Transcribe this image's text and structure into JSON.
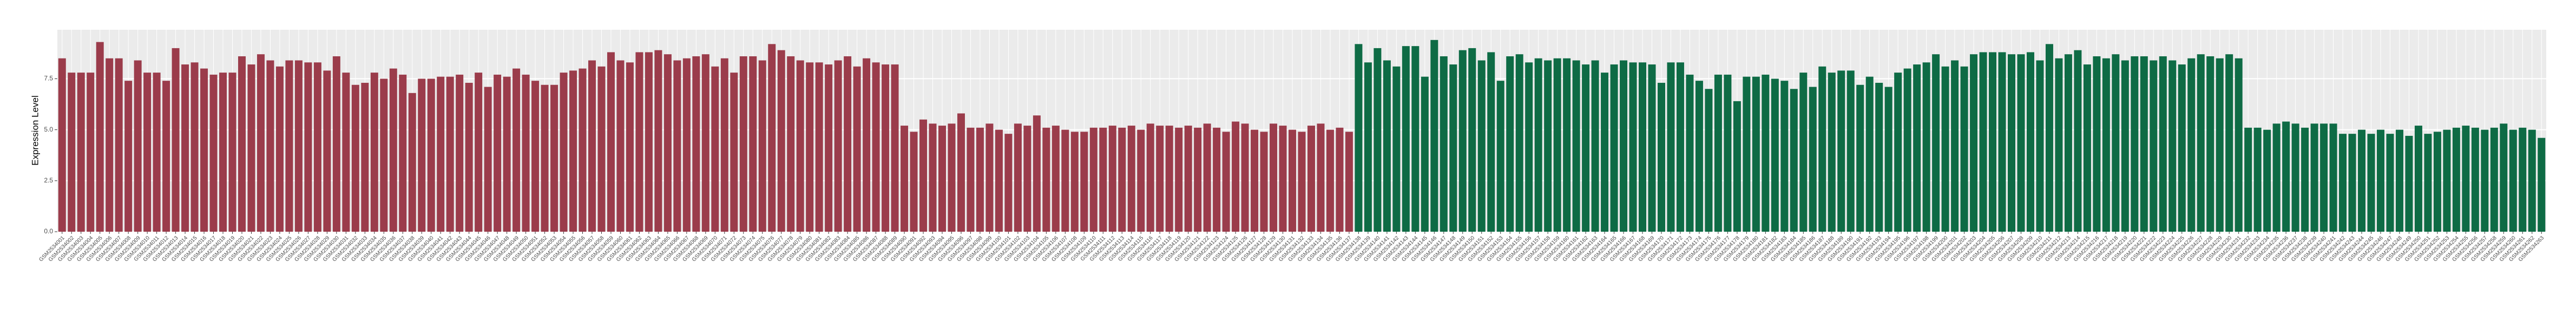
{
  "chart_data": {
    "type": "bar",
    "y_label": "Expression Level",
    "categories": [
      "GSM2534001",
      "GSM2534002",
      "GSM2534003",
      "GSM2534004",
      "GSM2534005",
      "GSM2534006",
      "GSM2534007",
      "GSM2534008",
      "GSM2534009",
      "GSM2534010",
      "GSM2534011",
      "GSM2534012",
      "GSM2534013",
      "GSM2534014",
      "GSM2534015",
      "GSM2534016",
      "GSM2534017",
      "GSM2534018",
      "GSM2534019",
      "GSM2534020",
      "GSM2534021",
      "GSM2534022",
      "GSM2534023",
      "GSM2534024",
      "GSM2534025",
      "GSM2534026",
      "GSM2534027",
      "GSM2534028",
      "GSM2534029",
      "GSM2534030",
      "GSM2534031",
      "GSM2534032",
      "GSM2534033",
      "GSM2534034",
      "GSM2534035",
      "GSM2534036",
      "GSM2534037",
      "GSM2534038",
      "GSM2534039",
      "GSM2534040",
      "GSM2534041",
      "GSM2534042",
      "GSM2534043",
      "GSM2534044",
      "GSM2534045",
      "GSM2534046",
      "GSM2534047",
      "GSM2534048",
      "GSM2534049",
      "GSM2534050",
      "GSM2534051",
      "GSM2534052",
      "GSM2534053",
      "GSM2534054",
      "GSM2534055",
      "GSM2534056",
      "GSM2534057",
      "GSM2534058",
      "GSM2534059",
      "GSM2534060",
      "GSM2534061",
      "GSM2534062",
      "GSM2534063",
      "GSM2534064",
      "GSM2534065",
      "GSM2534066",
      "GSM2534067",
      "GSM2534068",
      "GSM2534069",
      "GSM2534070",
      "GSM2534071",
      "GSM2534072",
      "GSM2534073",
      "GSM2534074",
      "GSM2534075",
      "GSM2534076",
      "GSM2534077",
      "GSM2534078",
      "GSM2534079",
      "GSM2534080",
      "GSM2534081",
      "GSM2534082",
      "GSM2534083",
      "GSM2534084",
      "GSM2534085",
      "GSM2534086",
      "GSM2534087",
      "GSM2534088",
      "GSM2534089",
      "GSM2534090",
      "GSM2534091",
      "GSM2534092",
      "GSM2534093",
      "GSM2534094",
      "GSM2534095",
      "GSM2534096",
      "GSM2534097",
      "GSM2534098",
      "GSM2534099",
      "GSM2534100",
      "GSM2534101",
      "GSM2534102",
      "GSM2534103",
      "GSM2534104",
      "GSM2534105",
      "GSM2534106",
      "GSM2534107",
      "GSM2534108",
      "GSM2534109",
      "GSM2534110",
      "GSM2534111",
      "GSM2534112",
      "GSM2534113",
      "GSM2534114",
      "GSM2534115",
      "GSM2534116",
      "GSM2534117",
      "GSM2534118",
      "GSM2534119",
      "GSM2534120",
      "GSM2534121",
      "GSM2534122",
      "GSM2534123",
      "GSM2534124",
      "GSM2534125",
      "GSM2534126",
      "GSM2534127",
      "GSM2534128",
      "GSM2534129",
      "GSM2534130",
      "GSM2534131",
      "GSM2534132",
      "GSM2534133",
      "GSM2534134",
      "GSM2534135",
      "GSM2534136",
      "GSM2534137",
      "GSM2534138",
      "GSM2534139",
      "GSM2534140",
      "GSM2534141",
      "GSM2534142",
      "GSM2534143",
      "GSM2534144",
      "GSM2534145",
      "GSM2534146",
      "GSM2534147",
      "GSM2534148",
      "GSM2534149",
      "GSM2534150",
      "GSM2534151",
      "GSM2534152",
      "GSM2534153",
      "GSM2534154",
      "GSM2534155",
      "GSM2534156",
      "GSM2534157",
      "GSM2534158",
      "GSM2534159",
      "GSM2534160",
      "GSM2534161",
      "GSM2534162",
      "GSM2534163",
      "GSM2534164",
      "GSM2534165",
      "GSM2534166",
      "GSM2534167",
      "GSM2534168",
      "GSM2534169",
      "GSM2534170",
      "GSM2534171",
      "GSM2534172",
      "GSM2534173",
      "GSM2534174",
      "GSM2534175",
      "GSM2534176",
      "GSM2534177",
      "GSM2534178",
      "GSM2534179",
      "GSM2534180",
      "GSM2534181",
      "GSM2534182",
      "GSM2534183",
      "GSM2534184",
      "GSM2534185",
      "GSM2534186",
      "GSM2534187",
      "GSM2534188",
      "GSM2534189",
      "GSM2534190",
      "GSM2534191",
      "GSM2534192",
      "GSM2534193",
      "GSM2534194",
      "GSM2534195",
      "GSM2534196",
      "GSM2534197",
      "GSM2534198",
      "GSM2534199",
      "GSM2534200",
      "GSM2534201",
      "GSM2534202",
      "GSM2534203",
      "GSM2534204",
      "GSM2534205",
      "GSM2534206",
      "GSM2534207",
      "GSM2534208",
      "GSM2534209",
      "GSM2534210",
      "GSM2534211",
      "GSM2534212",
      "GSM2534213",
      "GSM2534214",
      "GSM2534215",
      "GSM2534216",
      "GSM2534217",
      "GSM2534218",
      "GSM2534219",
      "GSM2534220",
      "GSM2534221",
      "GSM2534222",
      "GSM2534223",
      "GSM2534224",
      "GSM2534225",
      "GSM2534226",
      "GSM2534227",
      "GSM2534228",
      "GSM2534229",
      "GSM2534230",
      "GSM2534231",
      "GSM2534232",
      "GSM2534233",
      "GSM2534234",
      "GSM2534235",
      "GSM2534236",
      "GSM2534237",
      "GSM2534238",
      "GSM2534239",
      "GSM2534240",
      "GSM2534241",
      "GSM2534242",
      "GSM2534243",
      "GSM2534244",
      "GSM2534245",
      "GSM2534246",
      "GSM2534247",
      "GSM2534248",
      "GSM2534249",
      "GSM2534250",
      "GSM2534251",
      "GSM2534252",
      "GSM2534253",
      "GSM2534254",
      "GSM2534255",
      "GSM2534256",
      "GSM2534257",
      "GSM2534258",
      "GSM2534259",
      "GSM2534260",
      "GSM2534261",
      "GSM2534262",
      "GSM2534263"
    ],
    "values": [
      8.5,
      7.8,
      7.8,
      7.8,
      9.3,
      8.5,
      8.5,
      7.4,
      8.4,
      7.8,
      7.8,
      7.4,
      9.0,
      8.2,
      8.3,
      8.0,
      7.7,
      7.8,
      7.8,
      8.6,
      8.2,
      8.7,
      8.4,
      8.1,
      8.4,
      8.4,
      8.3,
      8.3,
      7.9,
      8.6,
      7.8,
      7.2,
      7.3,
      7.8,
      7.5,
      8.0,
      7.7,
      6.8,
      7.5,
      7.5,
      7.6,
      7.6,
      7.7,
      7.3,
      7.8,
      7.1,
      7.7,
      7.6,
      8.0,
      7.7,
      7.4,
      7.2,
      7.2,
      7.8,
      7.9,
      8.0,
      8.4,
      8.1,
      8.8,
      8.4,
      8.3,
      8.8,
      8.8,
      8.9,
      8.7,
      8.4,
      8.5,
      8.6,
      8.7,
      8.1,
      8.5,
      7.8,
      8.6,
      8.6,
      8.4,
      9.2,
      8.9,
      8.6,
      8.4,
      8.3,
      8.3,
      8.2,
      8.4,
      8.6,
      8.1,
      8.5,
      8.3,
      8.2,
      8.2,
      5.2,
      4.9,
      5.5,
      5.3,
      5.2,
      5.3,
      5.8,
      5.1,
      5.1,
      5.3,
      5.0,
      4.8,
      5.3,
      5.2,
      5.7,
      5.1,
      5.2,
      5.0,
      4.9,
      4.9,
      5.1,
      5.1,
      5.2,
      5.1,
      5.2,
      5.0,
      5.3,
      5.2,
      5.2,
      5.1,
      5.2,
      5.1,
      5.3,
      5.1,
      4.9,
      5.4,
      5.3,
      5.0,
      4.9,
      5.3,
      5.2,
      5.0,
      4.9,
      5.2,
      5.3,
      5.0,
      5.1,
      4.9,
      9.2,
      8.3,
      9.0,
      8.4,
      8.1,
      9.1,
      9.1,
      7.6,
      9.4,
      8.6,
      8.2,
      8.9,
      9.0,
      8.4,
      8.8,
      7.4,
      8.6,
      8.7,
      8.3,
      8.5,
      8.4,
      8.5,
      8.5,
      8.4,
      8.2,
      8.4,
      7.8,
      8.2,
      8.4,
      8.3,
      8.3,
      8.2,
      7.3,
      8.3,
      8.3,
      7.7,
      7.4,
      7.0,
      7.7,
      7.7,
      6.4,
      7.6,
      7.6,
      7.7,
      7.5,
      7.4,
      7.0,
      7.8,
      7.1,
      8.1,
      7.8,
      7.9,
      7.9,
      7.2,
      7.6,
      7.3,
      7.1,
      7.8,
      8.0,
      8.2,
      8.3,
      8.7,
      8.1,
      8.4,
      8.1,
      8.7,
      8.8,
      8.8,
      8.8,
      8.7,
      8.7,
      8.8,
      8.4,
      9.2,
      8.5,
      8.7,
      8.9,
      8.2,
      8.6,
      8.5,
      8.7,
      8.4,
      8.6,
      8.6,
      8.4,
      8.6,
      8.4,
      8.2,
      8.5,
      8.7,
      8.6,
      8.5,
      8.7,
      8.5,
      5.1,
      5.1,
      5.0,
      5.3,
      5.4,
      5.3,
      5.1,
      5.3,
      5.3,
      5.3,
      4.8,
      4.8,
      5.0,
      4.8,
      5.0,
      4.8,
      5.0,
      4.7,
      5.2,
      4.8,
      4.9,
      5.0,
      5.1,
      5.2,
      5.1,
      5.0,
      5.1,
      5.3,
      5.0,
      5.1,
      5.0,
      4.6
    ],
    "colors": [
      "#9b3c4b",
      "#9b3c4b",
      "#9b3c4b",
      "#9b3c4b",
      "#9b3c4b",
      "#9b3c4b",
      "#9b3c4b",
      "#9b3c4b",
      "#9b3c4b",
      "#9b3c4b",
      "#9b3c4b",
      "#9b3c4b",
      "#9b3c4b",
      "#9b3c4b",
      "#9b3c4b",
      "#9b3c4b",
      "#9b3c4b",
      "#9b3c4b",
      "#9b3c4b",
      "#9b3c4b",
      "#9b3c4b",
      "#9b3c4b",
      "#9b3c4b",
      "#9b3c4b",
      "#9b3c4b",
      "#9b3c4b",
      "#9b3c4b",
      "#9b3c4b",
      "#9b3c4b",
      "#9b3c4b",
      "#9b3c4b",
      "#9b3c4b",
      "#9b3c4b",
      "#9b3c4b",
      "#9b3c4b",
      "#9b3c4b",
      "#9b3c4b",
      "#9b3c4b",
      "#9b3c4b",
      "#9b3c4b",
      "#9b3c4b",
      "#9b3c4b",
      "#9b3c4b",
      "#9b3c4b",
      "#9b3c4b",
      "#9b3c4b",
      "#9b3c4b",
      "#9b3c4b",
      "#9b3c4b",
      "#9b3c4b",
      "#9b3c4b",
      "#9b3c4b",
      "#9b3c4b",
      "#9b3c4b",
      "#9b3c4b",
      "#9b3c4b",
      "#9b3c4b",
      "#9b3c4b",
      "#9b3c4b",
      "#9b3c4b",
      "#9b3c4b",
      "#9b3c4b",
      "#9b3c4b",
      "#9b3c4b",
      "#9b3c4b",
      "#9b3c4b",
      "#9b3c4b",
      "#9b3c4b",
      "#9b3c4b",
      "#9b3c4b",
      "#9b3c4b",
      "#9b3c4b",
      "#9b3c4b",
      "#9b3c4b",
      "#9b3c4b",
      "#9b3c4b",
      "#9b3c4b",
      "#9b3c4b",
      "#9b3c4b",
      "#9b3c4b",
      "#9b3c4b",
      "#9b3c4b",
      "#9b3c4b",
      "#9b3c4b",
      "#9b3c4b",
      "#9b3c4b",
      "#9b3c4b",
      "#9b3c4b",
      "#9b3c4b",
      "#9b3c4b",
      "#9b3c4b",
      "#9b3c4b",
      "#9b3c4b",
      "#9b3c4b",
      "#9b3c4b",
      "#9b3c4b",
      "#9b3c4b",
      "#9b3c4b",
      "#9b3c4b",
      "#9b3c4b",
      "#9b3c4b",
      "#9b3c4b",
      "#9b3c4b",
      "#9b3c4b",
      "#9b3c4b",
      "#9b3c4b",
      "#9b3c4b",
      "#9b3c4b",
      "#9b3c4b",
      "#9b3c4b",
      "#9b3c4b",
      "#9b3c4b",
      "#9b3c4b",
      "#9b3c4b",
      "#9b3c4b",
      "#9b3c4b",
      "#9b3c4b",
      "#9b3c4b",
      "#9b3c4b",
      "#9b3c4b",
      "#9b3c4b",
      "#9b3c4b",
      "#9b3c4b",
      "#9b3c4b",
      "#9b3c4b",
      "#9b3c4b",
      "#9b3c4b",
      "#9b3c4b",
      "#9b3c4b",
      "#9b3c4b",
      "#9b3c4b",
      "#9b3c4b",
      "#9b3c4b",
      "#9b3c4b",
      "#9b3c4b",
      "#9b3c4b",
      "#9b3c4b",
      "#0e6b45",
      "#0e6b45",
      "#0e6b45",
      "#0e6b45",
      "#0e6b45",
      "#0e6b45",
      "#0e6b45",
      "#0e6b45",
      "#0e6b45",
      "#0e6b45",
      "#0e6b45",
      "#0e6b45",
      "#0e6b45",
      "#0e6b45",
      "#0e6b45",
      "#0e6b45",
      "#0e6b45",
      "#0e6b45",
      "#0e6b45",
      "#0e6b45",
      "#0e6b45",
      "#0e6b45",
      "#0e6b45",
      "#0e6b45",
      "#0e6b45",
      "#0e6b45",
      "#0e6b45",
      "#0e6b45",
      "#0e6b45",
      "#0e6b45",
      "#0e6b45",
      "#0e6b45",
      "#0e6b45",
      "#0e6b45",
      "#0e6b45",
      "#0e6b45",
      "#0e6b45",
      "#0e6b45",
      "#0e6b45",
      "#0e6b45",
      "#0e6b45",
      "#0e6b45",
      "#0e6b45",
      "#0e6b45",
      "#0e6b45",
      "#0e6b45",
      "#0e6b45",
      "#0e6b45",
      "#0e6b45",
      "#0e6b45",
      "#0e6b45",
      "#0e6b45",
      "#0e6b45",
      "#0e6b45",
      "#0e6b45",
      "#0e6b45",
      "#0e6b45",
      "#0e6b45",
      "#0e6b45",
      "#0e6b45",
      "#0e6b45",
      "#0e6b45",
      "#0e6b45",
      "#0e6b45",
      "#0e6b45",
      "#0e6b45",
      "#0e6b45",
      "#0e6b45",
      "#0e6b45",
      "#0e6b45",
      "#0e6b45",
      "#0e6b45",
      "#0e6b45",
      "#0e6b45",
      "#0e6b45",
      "#0e6b45",
      "#0e6b45",
      "#0e6b45",
      "#0e6b45",
      "#0e6b45",
      "#0e6b45",
      "#0e6b45",
      "#0e6b45",
      "#0e6b45",
      "#0e6b45",
      "#0e6b45",
      "#0e6b45",
      "#0e6b45",
      "#0e6b45",
      "#0e6b45",
      "#0e6b45",
      "#0e6b45",
      "#0e6b45",
      "#0e6b45",
      "#0e6b45",
      "#0e6b45",
      "#0e6b45",
      "#0e6b45",
      "#0e6b45",
      "#0e6b45",
      "#0e6b45",
      "#0e6b45",
      "#0e6b45",
      "#0e6b45",
      "#0e6b45",
      "#0e6b45",
      "#0e6b45",
      "#0e6b45",
      "#0e6b45",
      "#0e6b45",
      "#0e6b45",
      "#0e6b45",
      "#0e6b45",
      "#0e6b45",
      "#0e6b45",
      "#0e6b45",
      "#0e6b45",
      "#0e6b45",
      "#0e6b45",
      "#0e6b45",
      "#0e6b45",
      "#0e6b45",
      "#0e6b45",
      "#0e6b45",
      "#0e6b45",
      "#0e6b45"
    ],
    "ylim": [
      0,
      9.9
    ],
    "yticks": [
      {
        "value": 0,
        "label": "0.0"
      },
      2.5,
      {
        "value": 5,
        "label": "5.0"
      },
      7.5
    ],
    "grid": true
  }
}
